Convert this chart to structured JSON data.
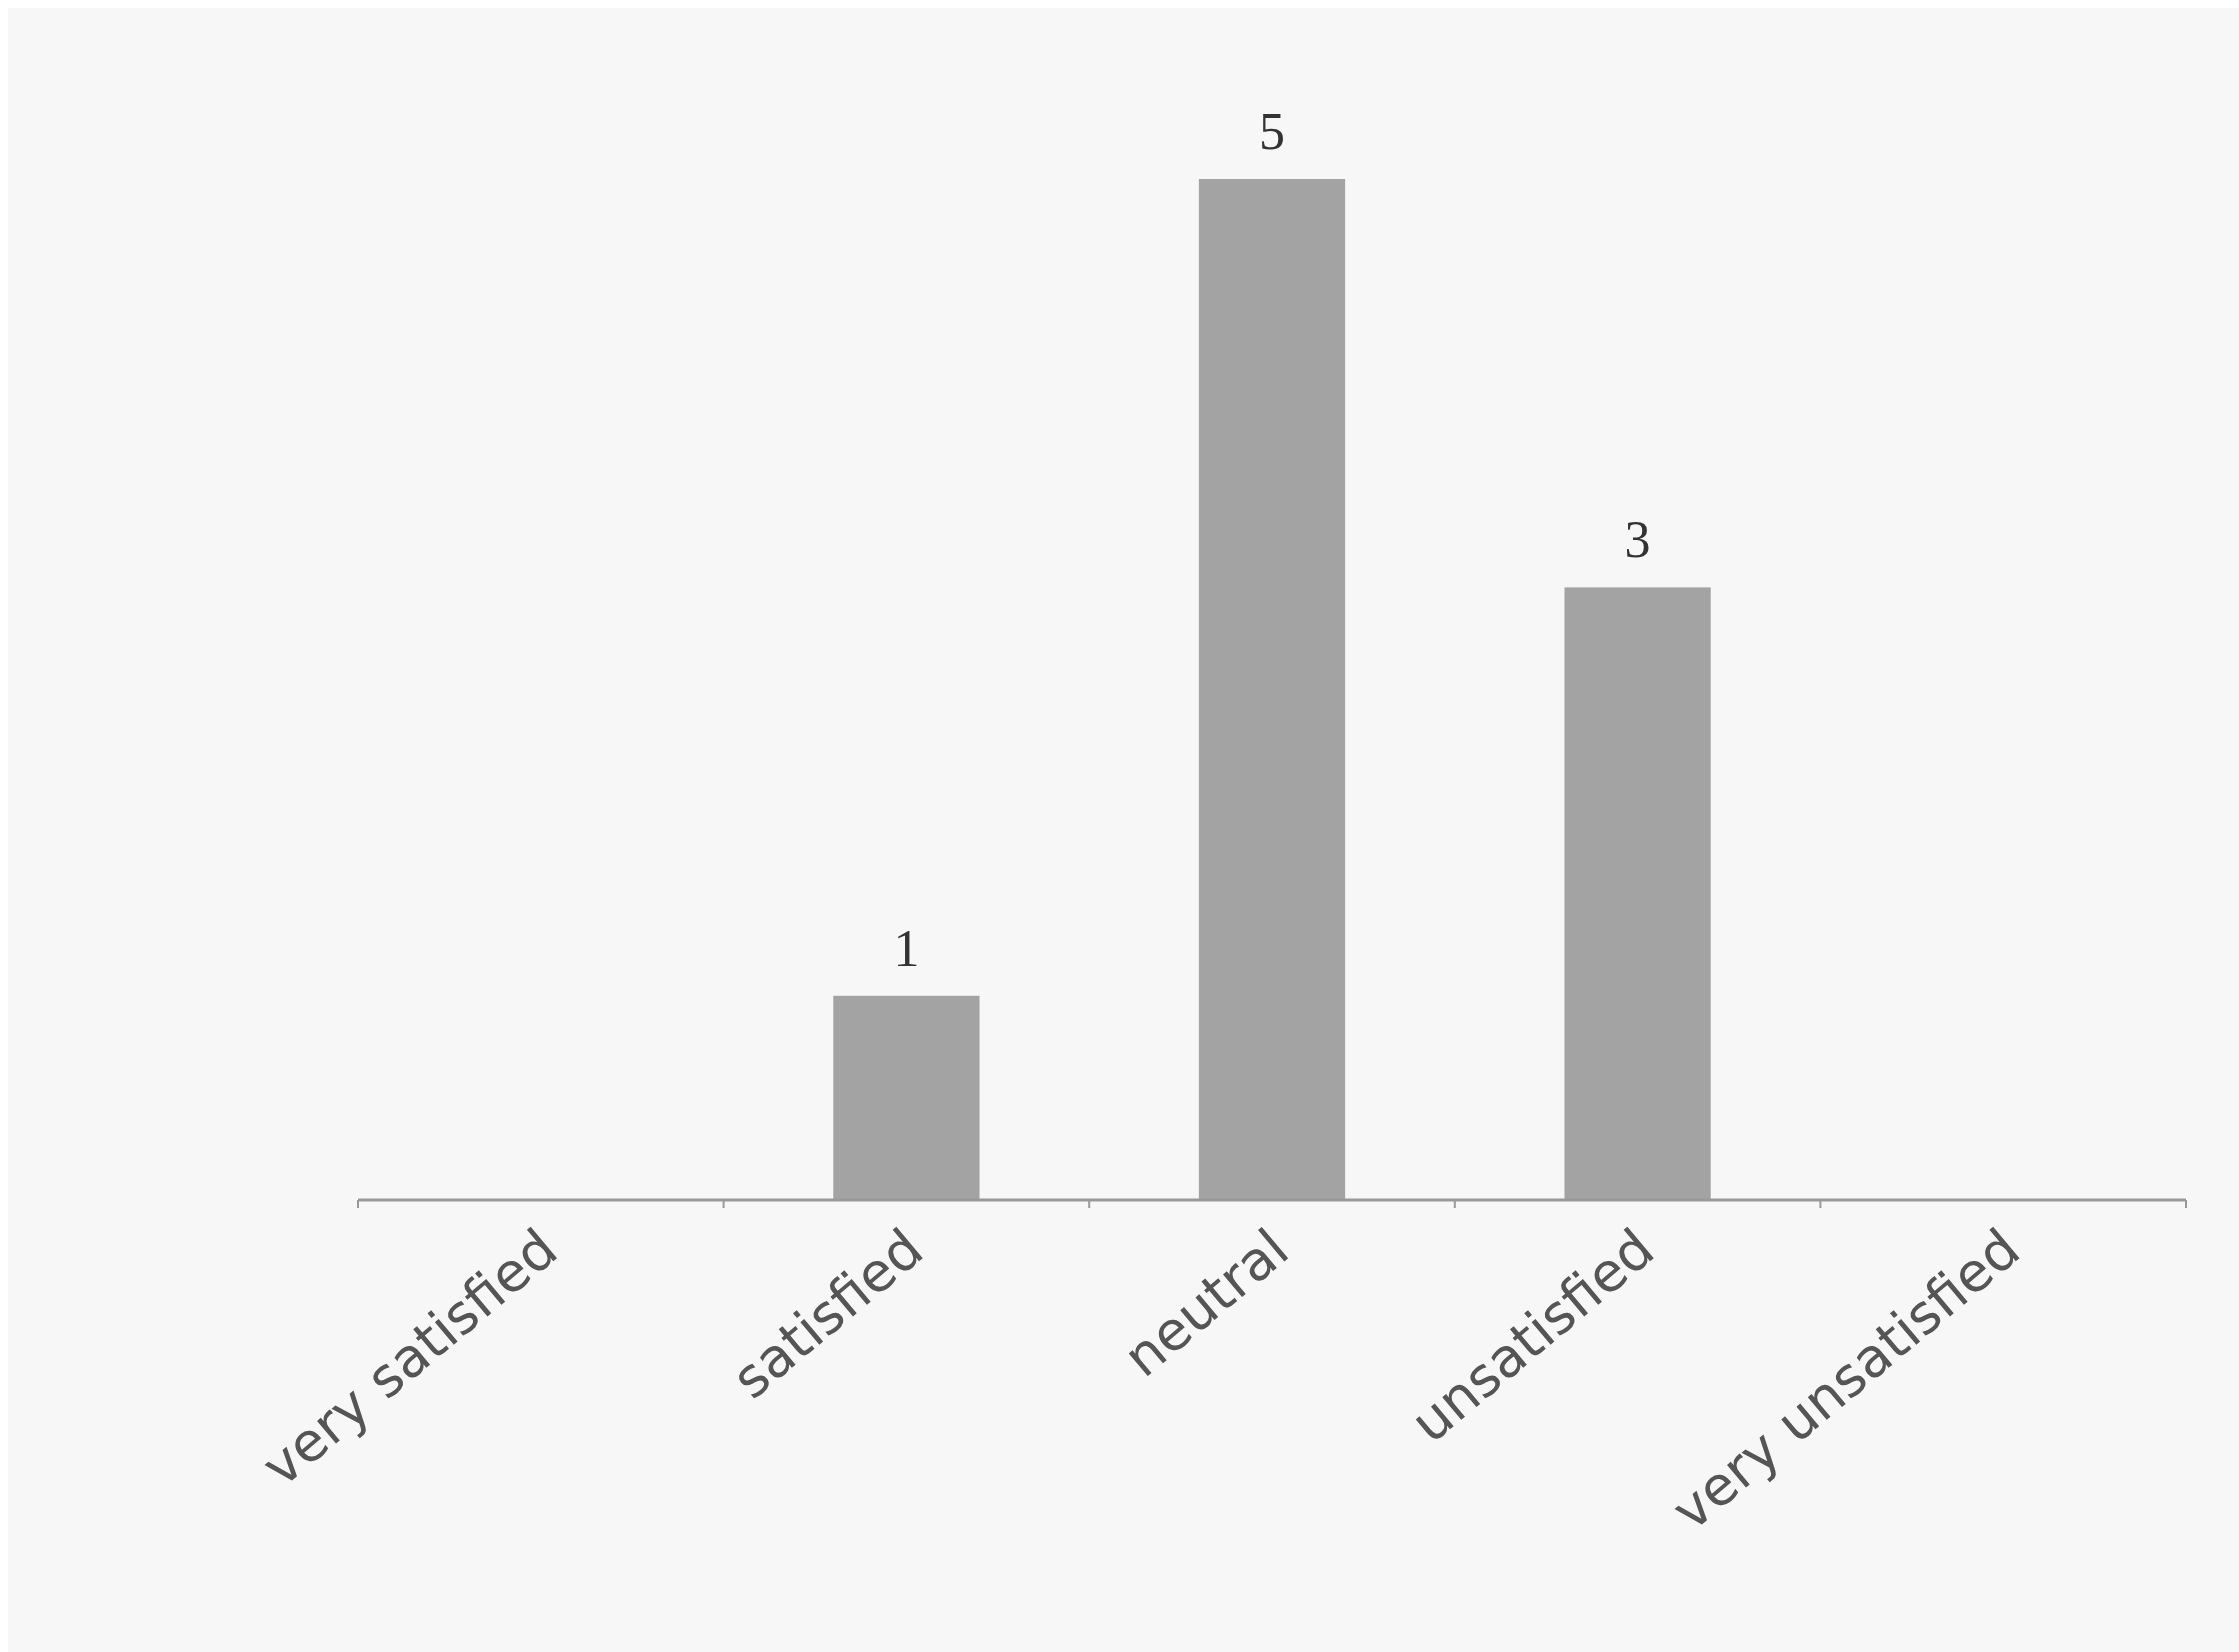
{
  "chart_data": {
    "type": "bar",
    "categories": [
      "very satisfied",
      "satisfied",
      "neutral",
      "unsatisfied",
      "very unsatisfied"
    ],
    "values": [
      0,
      1,
      5,
      3,
      0
    ],
    "value_labels": [
      null,
      "1",
      "5",
      "3",
      null
    ],
    "color": "#a3a3a3"
  }
}
